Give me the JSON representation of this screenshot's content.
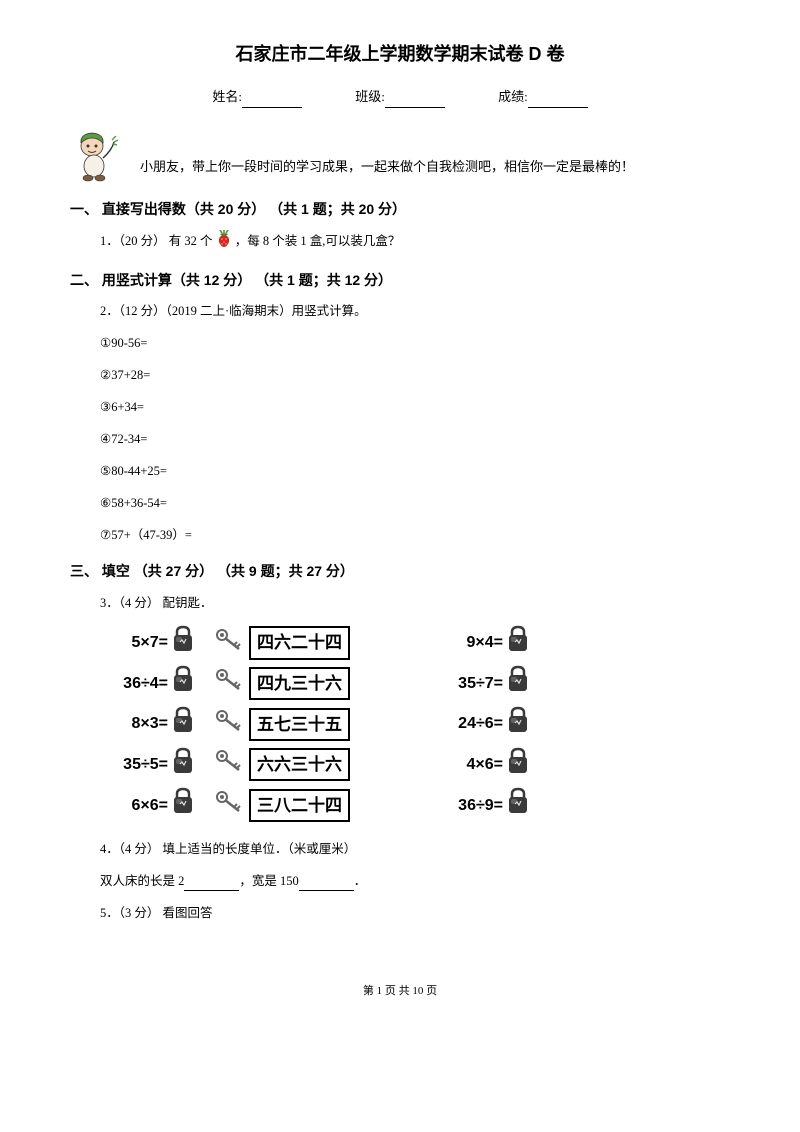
{
  "title": "石家庄市二年级上学期数学期末试卷 D 卷",
  "info": {
    "name_label": "姓名:",
    "class_label": "班级:",
    "score_label": "成绩:"
  },
  "intro": "小朋友，带上你一段时间的学习成果，一起来做个自我检测吧，相信你一定是最棒的！",
  "sections": {
    "s1": {
      "header": "一、 直接写出得数（共 20 分） （共 1 题；共 20 分）",
      "q1_prefix": "1．（20 分） 有 32 个 ",
      "q1_suffix": " ，每 8 个装 1 盒,可以装几盒？"
    },
    "s2": {
      "header": "二、 用竖式计算（共 12 分） （共 1 题；共 12 分）",
      "q2": "2．（12 分）（2019 二上·临海期末）用竖式计算。",
      "items": {
        "i1": "①90-56=",
        "i2": "②37+28=",
        "i3": "③6+34=",
        "i4": "④72-34=",
        "i5": "⑤80-44+25=",
        "i6": "⑥58+36-54=",
        "i7": "⑦57+（47-39）="
      }
    },
    "s3": {
      "header": "三、 填空 （共 27 分） （共 9 题；共 27 分）",
      "q3": "3．（4 分） 配钥匙．",
      "lock_table": {
        "rows": [
          {
            "left": "5×7=",
            "mid": "四六二十四",
            "right": "9×4="
          },
          {
            "left": "36÷4=",
            "mid": "四九三十六",
            "right": "35÷7="
          },
          {
            "left": "8×3=",
            "mid": "五七三十五",
            "right": "24÷6="
          },
          {
            "left": "35÷5=",
            "mid": "六六三十六",
            "right": "4×6="
          },
          {
            "left": "6×6=",
            "mid": "三八二十四",
            "right": "36÷9="
          }
        ]
      },
      "q4_prefix": "4．（4 分） 填上适当的长度单位．（米或厘米）",
      "q4_line": {
        "p1": "双人床的长是 2",
        "p2": "，宽是 150",
        "p3": "．"
      },
      "q5": "5．（3 分） 看图回答"
    }
  },
  "footer": "第 1 页 共 10 页",
  "colors": {
    "lock_body": "#3a3a3a",
    "lock_highlight": "#888888",
    "key_color": "#666666",
    "mascot_green": "#5a9e3f",
    "mascot_skin": "#f5d6b8",
    "strawberry_red": "#d42828",
    "strawberry_green": "#4a8f2f"
  }
}
